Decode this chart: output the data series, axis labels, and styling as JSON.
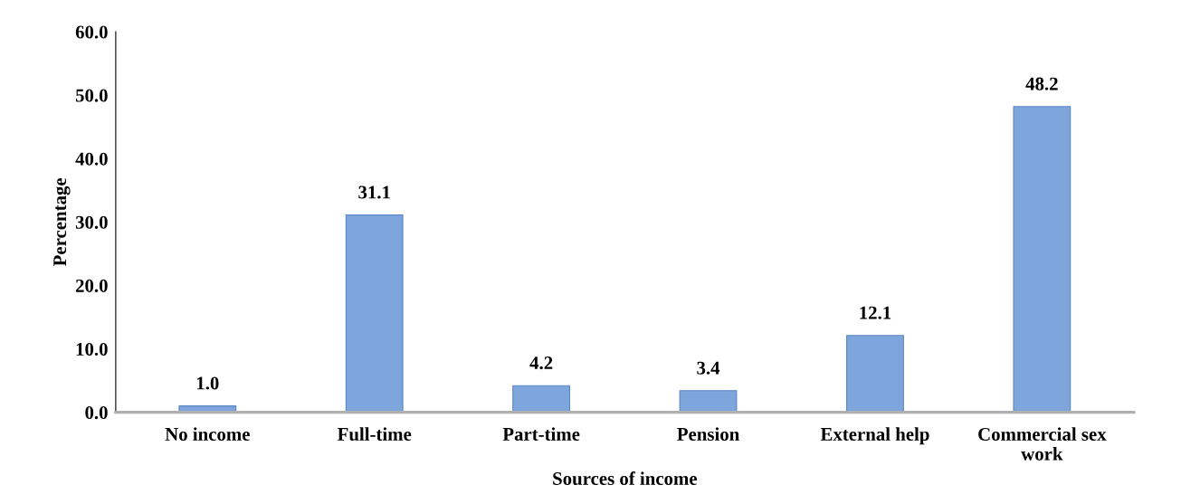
{
  "chart_data": {
    "type": "bar",
    "xlabel": "Sources of income",
    "ylabel": "Percentage",
    "categories": [
      "No income",
      "Full-time",
      "Part-time",
      "Pension",
      "External help",
      "Commercial sex work"
    ],
    "values": [
      1.0,
      31.1,
      4.2,
      3.4,
      12.1,
      48.2
    ],
    "value_labels": [
      "1.0",
      "31.1",
      "4.2",
      "3.4",
      "12.1",
      "48.2"
    ],
    "color": "#7ea6dd",
    "ylim": [
      0,
      60
    ],
    "yticks": [
      {
        "value": 0,
        "label": "0.0"
      },
      {
        "value": 10,
        "label": "10.0"
      },
      {
        "value": 20,
        "label": "20.0"
      },
      {
        "value": 30,
        "label": "30.0"
      },
      {
        "value": 40,
        "label": "40.0"
      },
      {
        "value": 50,
        "label": "50.0"
      },
      {
        "value": 60,
        "label": "60.0"
      }
    ],
    "grid": false,
    "legend": false
  }
}
